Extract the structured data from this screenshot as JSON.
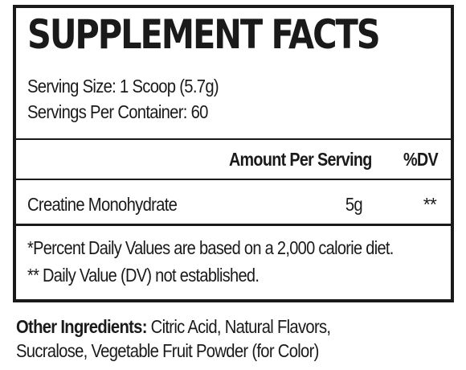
{
  "title": "SUPPLEMENT FACTS",
  "serving_size": "Serving Size: 1 Scoop (5.7g)",
  "servings_per_container": "Servings Per Container: 60",
  "table": {
    "header_amount": "Amount Per Serving",
    "header_dv": "%DV",
    "rows": [
      {
        "name": "Creatine Monohydrate",
        "amount": "5g",
        "dv": "**"
      }
    ]
  },
  "footnotes": [
    "*Percent Daily Values are based on a 2,000 calorie diet.",
    "** Daily Value (DV) not established."
  ],
  "other_ingredients": {
    "label": "Other Ingredients:",
    "text": " Citric Acid, Natural Flavors, Sucralose, Vegetable Fruit Powder (for Color)"
  }
}
